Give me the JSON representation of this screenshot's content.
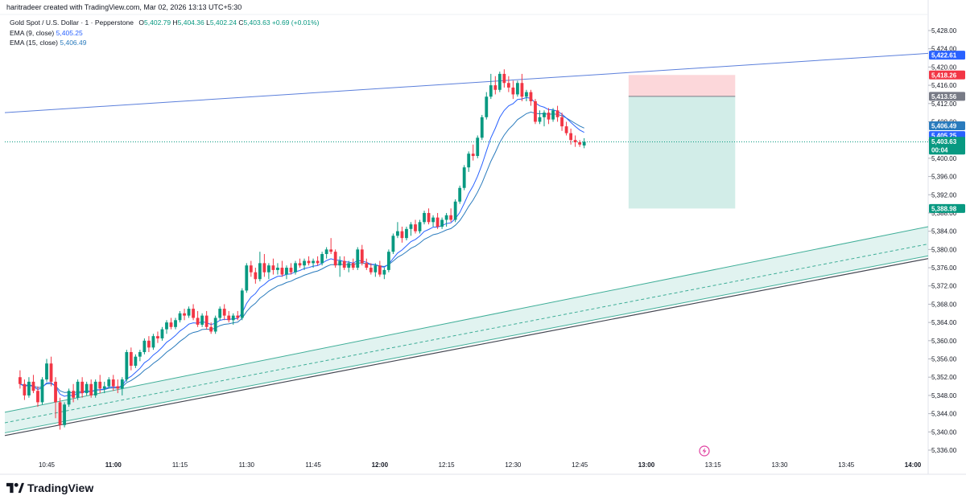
{
  "credit": "haritradeer created with TradingView.com, Mar 02, 2026 13:13 UTC+5:30",
  "symbol": {
    "name": "Gold Spot / U.S. Dollar · 1 · Pepperstone",
    "o_label": "O",
    "o": "5,402.79",
    "h_label": "H",
    "h": "5,404.36",
    "l_label": "L",
    "l": "5,402.24",
    "c_label": "C",
    "c": "5,403.63",
    "change": "+0.69 (+0.01%)"
  },
  "indicators": [
    {
      "label": "EMA (9, close)",
      "value": "5,405.25",
      "color": "#2962ff"
    },
    {
      "label": "EMA (15, close)",
      "value": "5,406.49",
      "color": "#2a7bbd"
    }
  ],
  "price_axis": {
    "ticks": [
      "5,428.00",
      "5,424.00",
      "5,420.00",
      "5,416.00",
      "5,412.00",
      "5,408.00",
      "5,404.00",
      "5,400.00",
      "5,396.00",
      "5,392.00",
      "5,388.00",
      "5,384.00",
      "5,380.00",
      "5,376.00",
      "5,372.00",
      "5,368.00",
      "5,364.00",
      "5,360.00",
      "5,356.00",
      "5,352.00",
      "5,348.00",
      "5,344.00",
      "5,340.00",
      "5,336.00"
    ],
    "badges": [
      {
        "text": "5,422.61",
        "price": 5422.61,
        "color": "#2962ff"
      },
      {
        "text": "5,418.26",
        "price": 5418.26,
        "color": "#f23645"
      },
      {
        "text": "5,413.56",
        "price": 5413.56,
        "color": "#787b86"
      },
      {
        "text": "5,406.49",
        "price": 5406.49,
        "color": "#2a7bbd"
      },
      {
        "text": "5,405.25",
        "price": 5405.25,
        "color": "#2962ff"
      },
      {
        "text": "5,403.63",
        "price": 5403.63,
        "color": "#089981",
        "sub": "00:04"
      },
      {
        "text": "5,388.98",
        "price": 5388.98,
        "color": "#089981"
      }
    ]
  },
  "time_axis": {
    "ticks": [
      "10:45",
      "11:00",
      "11:15",
      "11:30",
      "11:45",
      "12:00",
      "12:15",
      "12:30",
      "12:45",
      "13:00",
      "13:15",
      "13:30",
      "13:45",
      "14:00"
    ]
  },
  "chart_data": {
    "type": "candlestick",
    "x_start": "10:39",
    "x_interval_minutes": 1,
    "ylim": [
      5334,
      5430
    ],
    "candles": [
      [
        5352.0,
        5353.5,
        5349.5,
        5350.5
      ],
      [
        5350.5,
        5351.5,
        5347.0,
        5348.0
      ],
      [
        5348.0,
        5352.0,
        5347.5,
        5351.0
      ],
      [
        5351.0,
        5352.5,
        5348.5,
        5349.0
      ],
      [
        5349.0,
        5350.0,
        5345.5,
        5346.5
      ],
      [
        5346.5,
        5352.0,
        5346.0,
        5351.5
      ],
      [
        5351.5,
        5356.0,
        5351.0,
        5355.0
      ],
      [
        5355.0,
        5356.5,
        5350.0,
        5351.0
      ],
      [
        5351.0,
        5352.0,
        5343.0,
        5346.5
      ],
      [
        5346.5,
        5347.5,
        5340.5,
        5341.5
      ],
      [
        5341.5,
        5346.5,
        5341.0,
        5346.0
      ],
      [
        5346.0,
        5349.5,
        5345.5,
        5349.0
      ],
      [
        5349.0,
        5350.5,
        5346.5,
        5347.5
      ],
      [
        5347.5,
        5351.5,
        5347.0,
        5351.0
      ],
      [
        5351.0,
        5352.0,
        5347.5,
        5348.5
      ],
      [
        5348.5,
        5351.0,
        5348.0,
        5350.5
      ],
      [
        5350.5,
        5351.5,
        5347.5,
        5348.0
      ],
      [
        5348.0,
        5351.5,
        5347.5,
        5351.0
      ],
      [
        5351.0,
        5352.5,
        5348.5,
        5349.5
      ],
      [
        5349.5,
        5351.0,
        5348.5,
        5350.0
      ],
      [
        5350.0,
        5352.0,
        5349.5,
        5351.5
      ],
      [
        5351.5,
        5352.5,
        5349.0,
        5350.0
      ],
      [
        5350.0,
        5351.5,
        5348.5,
        5349.5
      ],
      [
        5349.5,
        5352.0,
        5348.0,
        5351.5
      ],
      [
        5351.5,
        5358.0,
        5351.0,
        5357.5
      ],
      [
        5357.5,
        5358.5,
        5353.5,
        5354.5
      ],
      [
        5354.5,
        5357.0,
        5354.0,
        5356.5
      ],
      [
        5356.5,
        5358.0,
        5355.5,
        5357.5
      ],
      [
        5357.5,
        5360.5,
        5357.0,
        5360.0
      ],
      [
        5360.0,
        5361.0,
        5357.5,
        5358.5
      ],
      [
        5358.5,
        5361.5,
        5358.0,
        5361.0
      ],
      [
        5361.0,
        5362.0,
        5359.5,
        5360.5
      ],
      [
        5360.5,
        5363.0,
        5360.0,
        5362.5
      ],
      [
        5362.5,
        5364.5,
        5361.5,
        5364.0
      ],
      [
        5364.0,
        5365.0,
        5362.5,
        5363.0
      ],
      [
        5363.0,
        5365.0,
        5362.5,
        5364.5
      ],
      [
        5364.5,
        5366.5,
        5364.0,
        5366.0
      ],
      [
        5366.0,
        5367.0,
        5364.5,
        5365.5
      ],
      [
        5365.5,
        5367.5,
        5365.0,
        5367.0
      ],
      [
        5367.0,
        5368.0,
        5364.5,
        5365.0
      ],
      [
        5365.0,
        5366.5,
        5363.0,
        5363.5
      ],
      [
        5363.5,
        5366.0,
        5363.0,
        5365.5
      ],
      [
        5365.5,
        5366.5,
        5362.5,
        5363.0
      ],
      [
        5363.0,
        5364.0,
        5361.5,
        5362.0
      ],
      [
        5362.0,
        5365.5,
        5361.5,
        5365.0
      ],
      [
        5365.0,
        5367.5,
        5364.5,
        5367.0
      ],
      [
        5367.0,
        5368.0,
        5364.5,
        5365.5
      ],
      [
        5365.5,
        5366.5,
        5364.0,
        5364.5
      ],
      [
        5364.5,
        5366.0,
        5363.5,
        5365.5
      ],
      [
        5365.5,
        5366.5,
        5364.5,
        5365.0
      ],
      [
        5365.0,
        5371.5,
        5364.5,
        5371.0
      ],
      [
        5371.0,
        5377.0,
        5370.5,
        5376.5
      ],
      [
        5376.5,
        5377.5,
        5374.0,
        5375.0
      ],
      [
        5375.0,
        5376.0,
        5372.5,
        5373.5
      ],
      [
        5373.5,
        5379.5,
        5373.0,
        5377.0
      ],
      [
        5377.0,
        5379.0,
        5374.0,
        5375.0
      ],
      [
        5375.0,
        5377.0,
        5373.5,
        5376.5
      ],
      [
        5376.5,
        5378.0,
        5374.5,
        5375.5
      ],
      [
        5375.5,
        5377.0,
        5374.5,
        5376.0
      ],
      [
        5376.0,
        5377.5,
        5374.0,
        5374.5
      ],
      [
        5374.5,
        5376.5,
        5373.5,
        5376.0
      ],
      [
        5376.0,
        5377.0,
        5374.5,
        5375.0
      ],
      [
        5375.0,
        5377.5,
        5374.5,
        5377.0
      ],
      [
        5377.0,
        5378.0,
        5376.0,
        5376.5
      ],
      [
        5376.5,
        5378.0,
        5375.5,
        5377.5
      ],
      [
        5377.5,
        5378.5,
        5376.5,
        5377.0
      ],
      [
        5377.0,
        5378.0,
        5376.0,
        5377.5
      ],
      [
        5377.5,
        5378.5,
        5376.5,
        5377.0
      ],
      [
        5377.0,
        5379.5,
        5376.5,
        5379.0
      ],
      [
        5379.0,
        5380.5,
        5378.0,
        5380.0
      ],
      [
        5380.0,
        5382.5,
        5379.0,
        5379.5
      ],
      [
        5379.5,
        5380.0,
        5376.0,
        5376.5
      ],
      [
        5376.5,
        5378.5,
        5374.0,
        5377.5
      ],
      [
        5377.5,
        5378.5,
        5375.5,
        5376.0
      ],
      [
        5376.0,
        5377.5,
        5375.0,
        5377.0
      ],
      [
        5377.0,
        5378.0,
        5375.5,
        5376.0
      ],
      [
        5376.0,
        5380.5,
        5375.5,
        5380.0
      ],
      [
        5380.0,
        5381.0,
        5376.5,
        5377.0
      ],
      [
        5377.0,
        5378.0,
        5375.5,
        5376.0
      ],
      [
        5376.0,
        5377.0,
        5374.5,
        5375.0
      ],
      [
        5375.0,
        5377.0,
        5374.0,
        5376.5
      ],
      [
        5376.5,
        5377.5,
        5374.0,
        5374.5
      ],
      [
        5374.5,
        5376.0,
        5373.5,
        5375.5
      ],
      [
        5375.5,
        5380.0,
        5375.0,
        5379.5
      ],
      [
        5379.5,
        5383.5,
        5379.0,
        5383.0
      ],
      [
        5383.0,
        5386.0,
        5382.5,
        5384.0
      ],
      [
        5384.0,
        5385.0,
        5381.5,
        5382.5
      ],
      [
        5382.5,
        5385.0,
        5382.0,
        5384.5
      ],
      [
        5384.5,
        5386.0,
        5383.0,
        5385.5
      ],
      [
        5385.5,
        5386.5,
        5383.5,
        5384.0
      ],
      [
        5384.0,
        5386.5,
        5383.5,
        5386.0
      ],
      [
        5386.0,
        5388.5,
        5385.5,
        5388.0
      ],
      [
        5388.0,
        5389.0,
        5385.5,
        5386.0
      ],
      [
        5386.0,
        5387.5,
        5385.0,
        5387.0
      ],
      [
        5387.0,
        5388.0,
        5384.5,
        5385.0
      ],
      [
        5385.0,
        5387.0,
        5384.5,
        5386.5
      ],
      [
        5386.5,
        5388.0,
        5385.0,
        5387.5
      ],
      [
        5387.5,
        5389.0,
        5386.0,
        5386.5
      ],
      [
        5386.5,
        5391.0,
        5386.0,
        5390.5
      ],
      [
        5390.5,
        5394.0,
        5390.0,
        5393.5
      ],
      [
        5393.5,
        5398.5,
        5393.0,
        5398.0
      ],
      [
        5398.0,
        5401.5,
        5397.0,
        5401.0
      ],
      [
        5401.0,
        5403.0,
        5399.5,
        5400.5
      ],
      [
        5400.5,
        5405.0,
        5400.0,
        5404.5
      ],
      [
        5404.5,
        5409.5,
        5404.0,
        5409.0
      ],
      [
        5409.0,
        5414.5,
        5408.5,
        5413.5
      ],
      [
        5413.5,
        5418.5,
        5413.0,
        5416.0
      ],
      [
        5416.0,
        5418.0,
        5414.0,
        5415.0
      ],
      [
        5415.0,
        5419.0,
        5414.5,
        5418.5
      ],
      [
        5418.5,
        5419.5,
        5415.5,
        5416.5
      ],
      [
        5416.5,
        5418.0,
        5414.5,
        5415.5
      ],
      [
        5415.5,
        5417.0,
        5413.0,
        5414.0
      ],
      [
        5414.0,
        5417.0,
        5413.5,
        5416.5
      ],
      [
        5416.5,
        5418.5,
        5412.5,
        5413.5
      ],
      [
        5413.5,
        5415.0,
        5412.5,
        5414.5
      ],
      [
        5414.5,
        5415.0,
        5411.5,
        5412.5
      ],
      [
        5412.5,
        5413.0,
        5407.5,
        5408.0
      ],
      [
        5408.0,
        5410.5,
        5407.5,
        5409.0
      ],
      [
        5409.0,
        5410.5,
        5407.0,
        5410.0
      ],
      [
        5410.0,
        5411.0,
        5407.5,
        5408.5
      ],
      [
        5408.5,
        5411.0,
        5408.0,
        5410.5
      ],
      [
        5410.5,
        5411.5,
        5408.0,
        5409.0
      ],
      [
        5409.0,
        5410.0,
        5406.0,
        5407.0
      ],
      [
        5407.0,
        5408.0,
        5405.0,
        5405.5
      ],
      [
        5405.5,
        5406.5,
        5403.0,
        5404.0
      ],
      [
        5404.0,
        5405.0,
        5402.5,
        5403.5
      ],
      [
        5403.5,
        5404.0,
        5402.5,
        5403.0
      ],
      [
        5402.8,
        5404.4,
        5402.2,
        5403.6
      ]
    ],
    "position": {
      "type": "short",
      "entry": 5413.56,
      "stop": 5418.26,
      "target": 5388.98,
      "start_time": "12:56",
      "end_time": "13:20"
    },
    "lines": [
      {
        "name": "resistance",
        "from": [
          "10:39",
          5410.0
        ],
        "to": [
          "14:04",
          5423.0
        ],
        "color": "#5b7fdb"
      },
      {
        "name": "channel-upper",
        "from": [
          "10:39",
          5344.3
        ],
        "to": [
          "14:04",
          5385.0
        ],
        "color": "#3fae98"
      },
      {
        "name": "channel-mid",
        "from": [
          "10:39",
          5342.0
        ],
        "to": [
          "14:04",
          5381.2
        ],
        "color": "#3fae98",
        "dashed": true
      },
      {
        "name": "channel-lower",
        "from": [
          "10:39",
          5339.8
        ],
        "to": [
          "14:04",
          5378.6
        ],
        "color": "#3fae98"
      },
      {
        "name": "support",
        "from": [
          "10:39",
          5339.2
        ],
        "to": [
          "14:04",
          5378.0
        ],
        "color": "#434651"
      }
    ],
    "up_color": "#089981",
    "down_color": "#f23645",
    "ema_fast_color": "#2962ff",
    "ema_slow_color": "#2a7bbd"
  },
  "footer": {
    "brand": "TradingView"
  }
}
